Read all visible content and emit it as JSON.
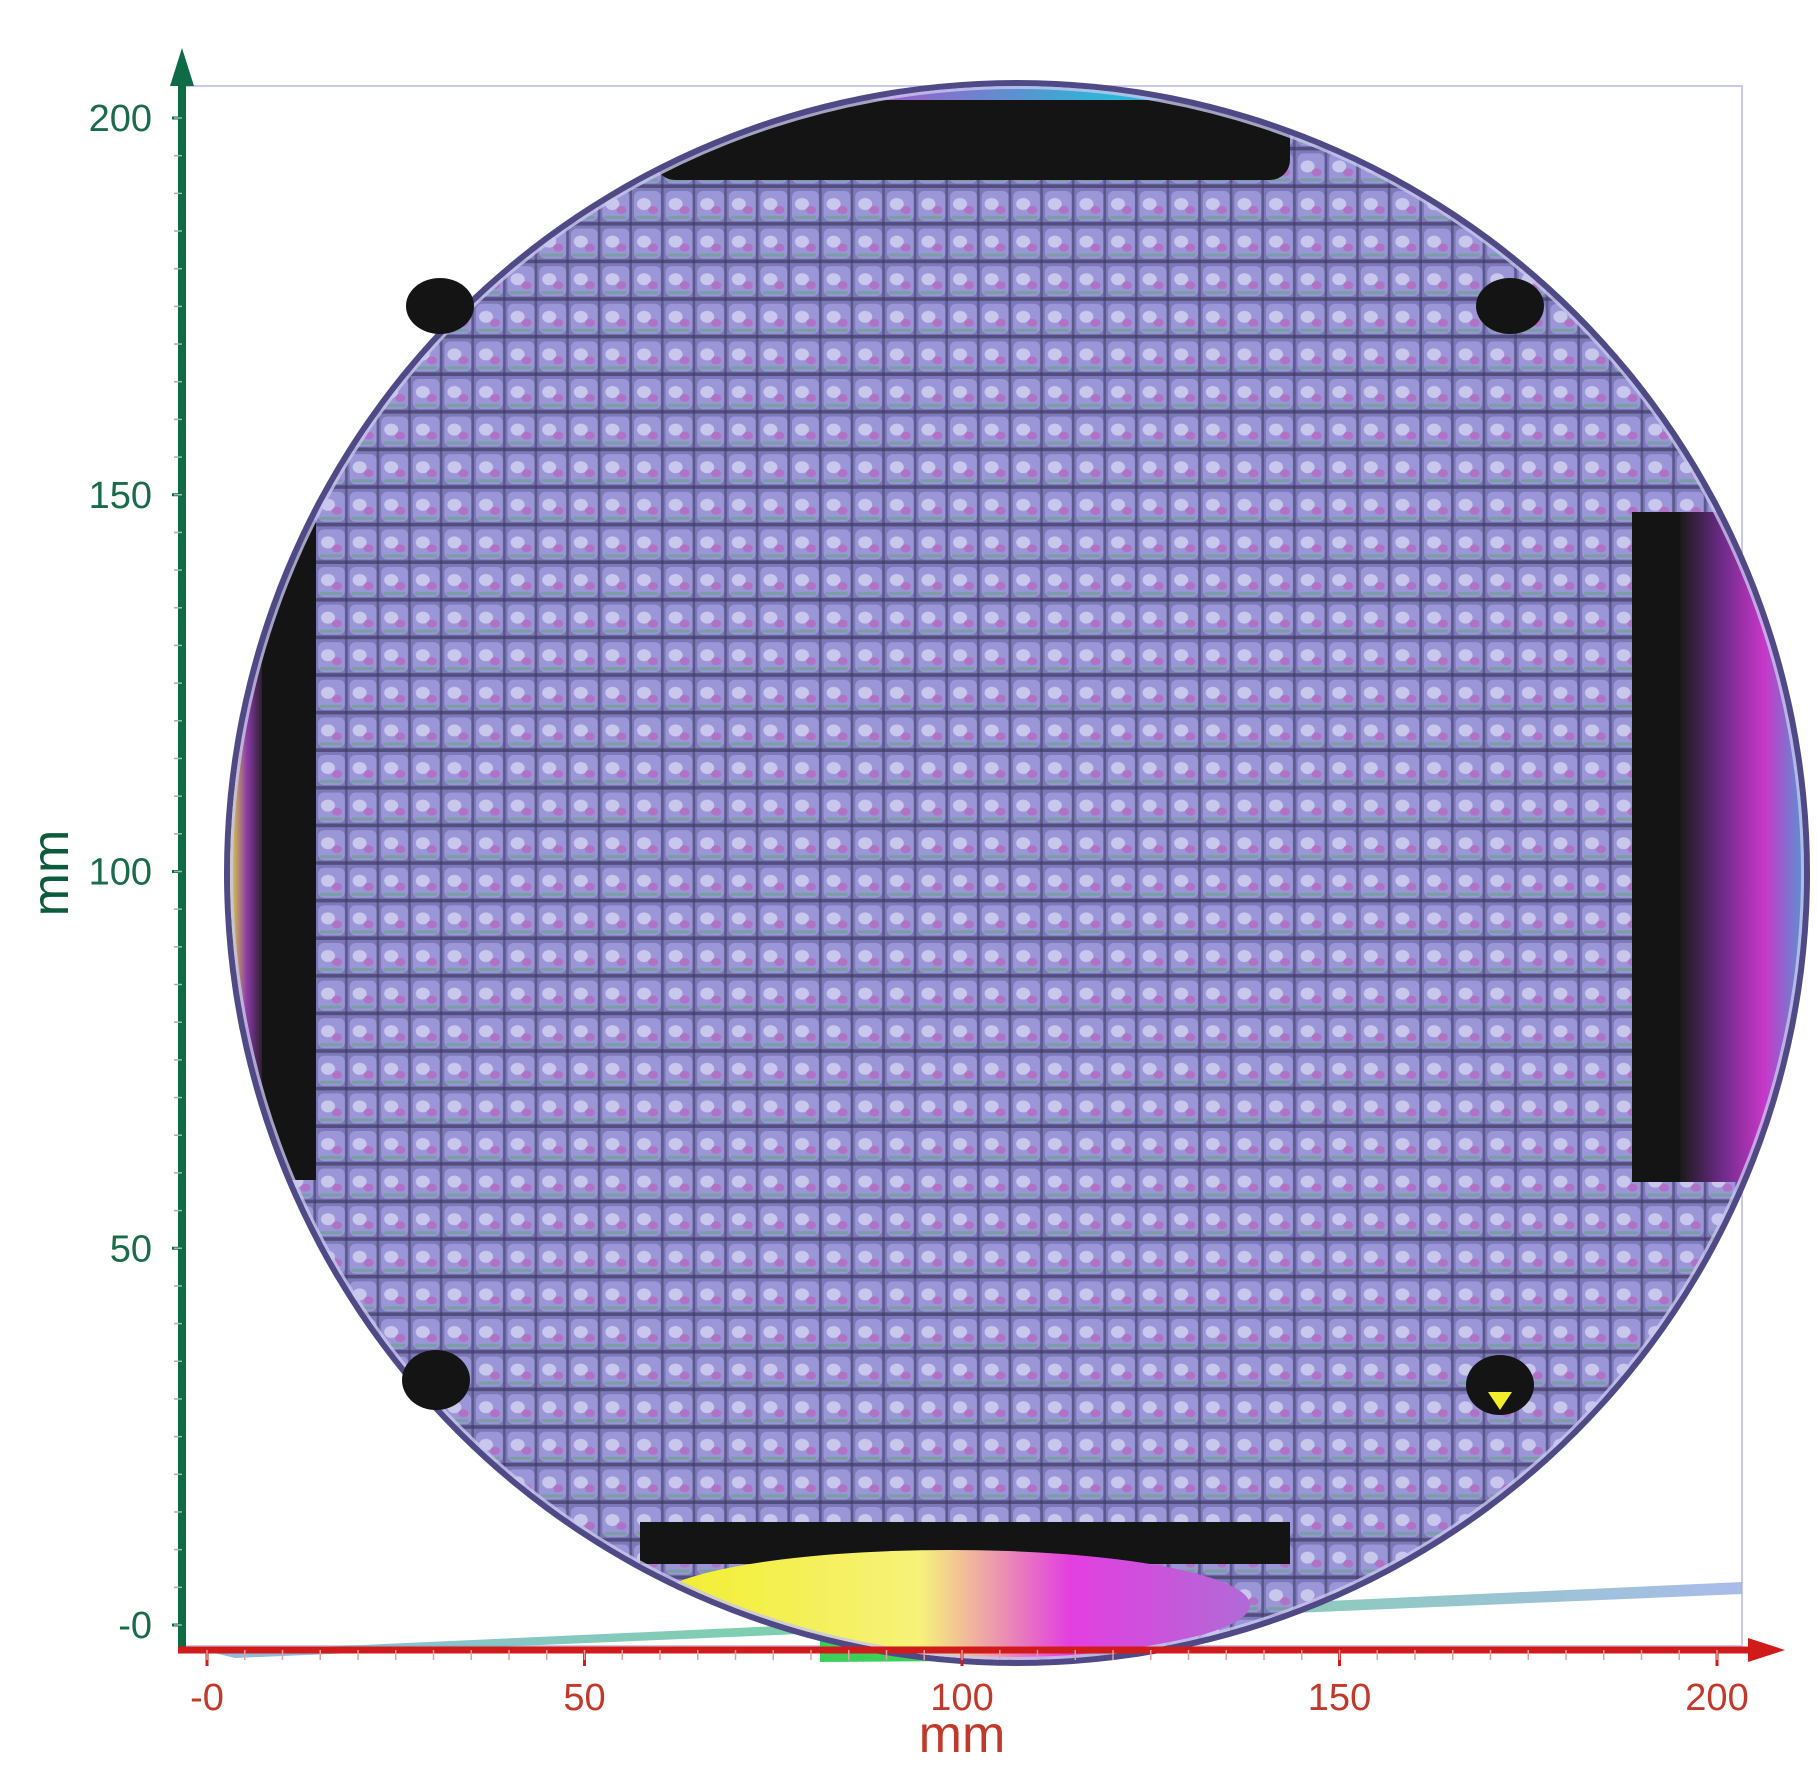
{
  "x_axis": {
    "label": "mm",
    "ticks": [
      "-0",
      "50",
      "100",
      "150",
      "200"
    ],
    "color": "#d11a1a",
    "text_color": "#c0392b"
  },
  "y_axis": {
    "label": "mm",
    "ticks": [
      "-0",
      "50",
      "100",
      "150",
      "200"
    ],
    "color": "#0e6b46",
    "text_color": "#1a6b4a"
  },
  "wafer": {
    "grid_rows": 44,
    "grid_cols": 44,
    "surface_color": "#8a86c4",
    "edge_color": "#1a1a1a",
    "accent_colors": [
      "#c837c8",
      "#2bb8d6",
      "#f2ee2a",
      "#4cd14c"
    ]
  }
}
